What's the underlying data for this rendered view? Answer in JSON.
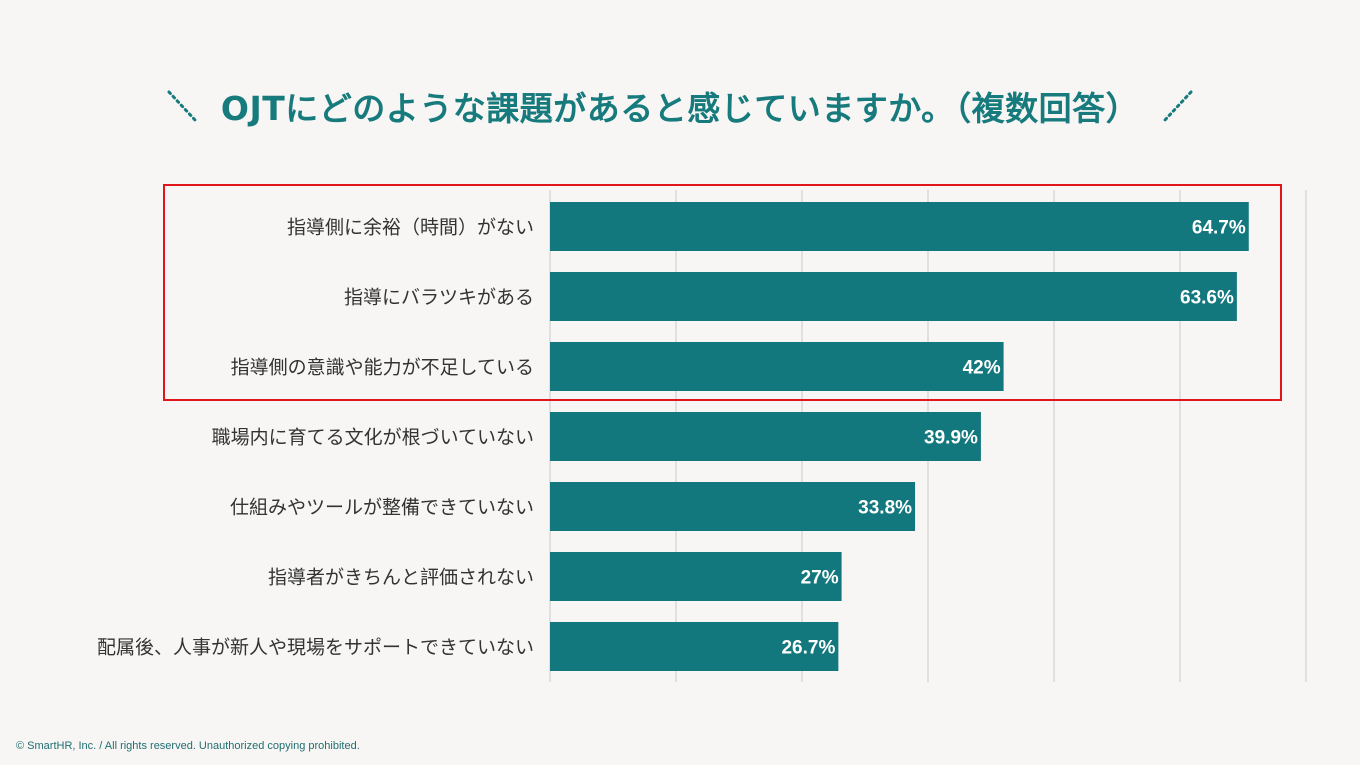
{
  "colors": {
    "accent": "#177a7c",
    "bar": "#12787d",
    "highlight": "#e0161c",
    "grid": "#c9c9c9",
    "label": "#333333",
    "value": "#ffffff"
  },
  "title": "OJTにどのような課題があると感じていますか。（複数回答）",
  "footer": "© SmartHR, Inc. / All rights reserved. Unauthorized copying prohibited.",
  "chart_data": {
    "type": "bar",
    "orientation": "horizontal",
    "categories": [
      "指導側に余裕（時間）がない",
      "指導にバラツキがある",
      "指導側の意識や能力が不足している",
      "職場内に育てる文化が根づいていない",
      "仕組みやツールが整備できていない",
      "指導者がきちんと評価されない",
      "配属後、人事が新人や現場をサポートできていない"
    ],
    "values": [
      64.7,
      63.6,
      42,
      39.9,
      33.8,
      27,
      26.7
    ],
    "value_labels": [
      "64.7%",
      "63.6%",
      "42%",
      "39.9%",
      "33.8%",
      "27%",
      "26.7%"
    ],
    "xlim": [
      0,
      70
    ],
    "grid": true,
    "highlighted_categories": [
      0,
      1,
      2
    ]
  }
}
